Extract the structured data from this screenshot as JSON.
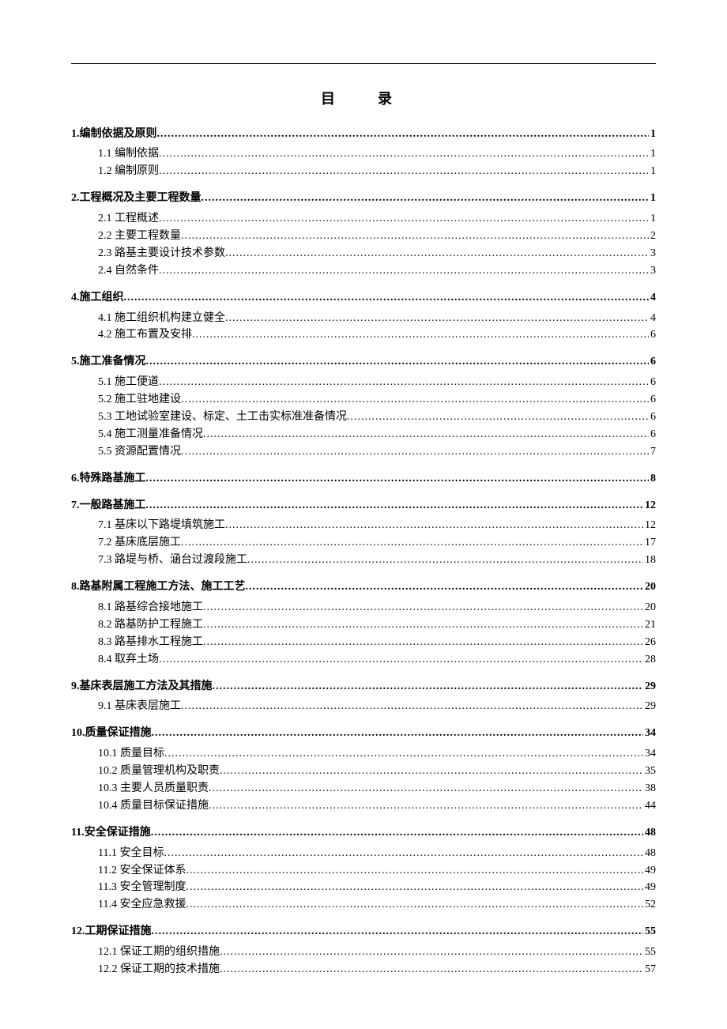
{
  "title": "目　录",
  "leader_char": ".",
  "leader_repeat": 200,
  "toc": [
    {
      "level": 1,
      "label": "1.编制依据及原则",
      "page": "1"
    },
    {
      "level": 2,
      "label": "1.1 编制依据",
      "page": "1"
    },
    {
      "level": 2,
      "label": "1.2 编制原则",
      "page": "1"
    },
    {
      "level": 1,
      "label": "2.工程概况及主要工程数量",
      "page": "1"
    },
    {
      "level": 2,
      "label": "2.1 工程概述",
      "page": "1"
    },
    {
      "level": 2,
      "label": "2.2 主要工程数量",
      "page": "2"
    },
    {
      "level": 2,
      "label": "2.3 路基主要设计技术参数",
      "page": "3"
    },
    {
      "level": 2,
      "label": "2.4 自然条件",
      "page": "3"
    },
    {
      "level": 1,
      "label": "4.施工组织",
      "page": "4"
    },
    {
      "level": 2,
      "label": "4.1 施工组织机构建立健全",
      "page": "4"
    },
    {
      "level": 2,
      "label": "4.2 施工布置及安排",
      "page": "6"
    },
    {
      "level": 1,
      "label": "5.施工准备情况",
      "page": "6"
    },
    {
      "level": 2,
      "label": "5.1 施工便道",
      "page": "6"
    },
    {
      "level": 2,
      "label": "5.2 施工驻地建设",
      "page": "6"
    },
    {
      "level": 2,
      "label": "5.3 工地试验室建设、标定、土工击实标准准备情况 ",
      "page": "6"
    },
    {
      "level": 2,
      "label": "5.4 施工测量准备情况",
      "page": "6"
    },
    {
      "level": 2,
      "label": "5.5 资源配置情况",
      "page": "7"
    },
    {
      "level": 1,
      "label": "6.特殊路基施工",
      "page": "8"
    },
    {
      "level": 1,
      "label": "7.一般路基施工",
      "page": "12"
    },
    {
      "level": 2,
      "label": "7.1 基床以下路堤填筑施工",
      "page": "12"
    },
    {
      "level": 2,
      "label": "7.2 基床底层施工",
      "page": "17"
    },
    {
      "level": 2,
      "label": "7.3 路堤与桥、涵台过渡段施工",
      "page": "18"
    },
    {
      "level": 1,
      "label": "8.路基附属工程施工方法、施工工艺",
      "page": "20"
    },
    {
      "level": 2,
      "label": "8.1 路基综合接地施工",
      "page": "20"
    },
    {
      "level": 2,
      "label": "8.2 路基防护工程施工",
      "page": "21"
    },
    {
      "level": 2,
      "label": "8.3 路基排水工程施工",
      "page": "26"
    },
    {
      "level": 2,
      "label": "8.4 取弃土场",
      "page": "28"
    },
    {
      "level": 1,
      "label": "9.基床表层施工方法及其措施",
      "page": "29"
    },
    {
      "level": 2,
      "label": "9.1 基床表层施工",
      "page": "29"
    },
    {
      "level": 1,
      "label": "10.质量保证措施",
      "page": "34"
    },
    {
      "level": 2,
      "label": "10.1 质量目标",
      "page": "34"
    },
    {
      "level": 2,
      "label": "10.2 质量管理机构及职责",
      "page": "35"
    },
    {
      "level": 2,
      "label": "10.3 主要人员质量职责",
      "page": "38"
    },
    {
      "level": 2,
      "label": "10.4 质量目标保证措施",
      "page": "44"
    },
    {
      "level": 1,
      "label": "11.安全保证措施",
      "page": "48"
    },
    {
      "level": 2,
      "label": "11.1 安全目标",
      "page": "48"
    },
    {
      "level": 2,
      "label": "11.2 安全保证体系",
      "page": "49"
    },
    {
      "level": 2,
      "label": "11.3 安全管理制度",
      "page": "49"
    },
    {
      "level": 2,
      "label": "11.4 安全应急救援",
      "page": "52"
    },
    {
      "level": 1,
      "label": "12.工期保证措施",
      "page": "55"
    },
    {
      "level": 2,
      "label": "12.1 保证工期的组织措施",
      "page": "55"
    },
    {
      "level": 2,
      "label": "12.2 保证工期的技术措施",
      "page": "57"
    }
  ]
}
